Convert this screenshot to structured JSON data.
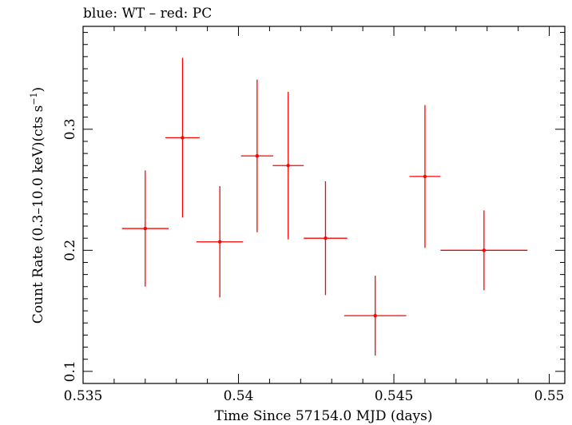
{
  "header": {
    "text": "blue: WT – red: PC"
  },
  "chart_data": {
    "type": "scatter",
    "xlabel": "Time Since 57154.0 MJD (days)",
    "ylabel": "Count Rate (0.3–10.0 keV)(cts s",
    "ylabel_sup": "−1",
    "ylabel_close": ")",
    "xlim": [
      0.535,
      0.5505
    ],
    "ylim": [
      0.09,
      0.385
    ],
    "x_ticks": [
      0.535,
      0.54,
      0.545,
      0.55
    ],
    "x_tick_labels": [
      "0.535",
      "0.54",
      "0.545",
      "0.55"
    ],
    "y_ticks": [
      0.1,
      0.2,
      0.3
    ],
    "y_tick_labels": [
      "0.1",
      "0.2",
      "0.3"
    ],
    "grid": false,
    "series": [
      {
        "color": "#ff0000",
        "points": [
          {
            "x": 0.537,
            "xerr": 0.00075,
            "y": 0.218,
            "yerr_lo": 0.048,
            "yerr_hi": 0.048
          },
          {
            "x": 0.5382,
            "xerr": 0.00055,
            "y": 0.293,
            "yerr_lo": 0.066,
            "yerr_hi": 0.066
          },
          {
            "x": 0.5394,
            "xerr": 0.00075,
            "y": 0.207,
            "yerr_lo": 0.046,
            "yerr_hi": 0.046
          },
          {
            "x": 0.5406,
            "xerr": 0.00052,
            "y": 0.278,
            "yerr_lo": 0.063,
            "yerr_hi": 0.063
          },
          {
            "x": 0.5416,
            "xerr": 0.0005,
            "y": 0.27,
            "yerr_lo": 0.061,
            "yerr_hi": 0.061
          },
          {
            "x": 0.5428,
            "xerr": 0.0007,
            "y": 0.21,
            "yerr_lo": 0.047,
            "yerr_hi": 0.047
          },
          {
            "x": 0.5444,
            "xerr": 0.001,
            "y": 0.146,
            "yerr_lo": 0.033,
            "yerr_hi": 0.033
          },
          {
            "x": 0.546,
            "xerr": 0.0005,
            "y": 0.261,
            "yerr_lo": 0.059,
            "yerr_hi": 0.059
          },
          {
            "x": 0.5479,
            "xerr": 0.0014,
            "y": 0.2,
            "yerr_lo": 0.033,
            "yerr_hi": 0.033
          }
        ]
      }
    ]
  }
}
